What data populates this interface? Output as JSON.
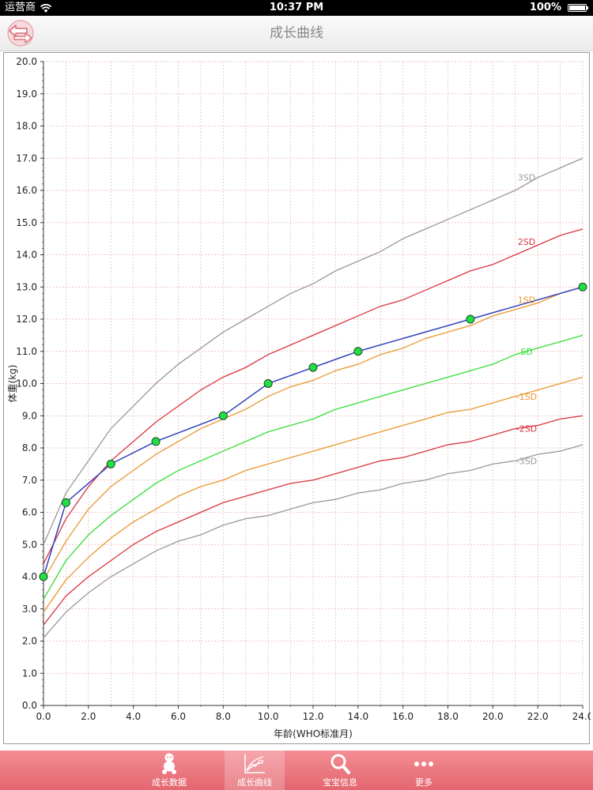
{
  "status_bar": {
    "carrier": "运营商",
    "time": "10:37 PM",
    "battery": "100%"
  },
  "nav": {
    "title": "成长曲线",
    "back_icon": "back-arrow-icon"
  },
  "tabs": [
    {
      "label": "成长数据",
      "icon": "baby-icon",
      "active": false
    },
    {
      "label": "成长曲线",
      "icon": "growth-chart-icon",
      "active": true
    },
    {
      "label": "宝宝信息",
      "icon": "search-icon",
      "active": false
    },
    {
      "label": "更多",
      "icon": "more-dots-icon",
      "active": false
    }
  ],
  "chart_data": {
    "type": "line",
    "xlabel": "年龄(WHO标准月)",
    "ylabel": "体重(kg)",
    "xlim": [
      0,
      24
    ],
    "ylim": [
      0,
      20
    ],
    "xticks": [
      "0.0",
      "2.0",
      "4.0",
      "6.0",
      "8.0",
      "10.0",
      "12.0",
      "14.0",
      "16.0",
      "18.0",
      "20.0",
      "22.0",
      "24.0"
    ],
    "yticks": [
      "0.0",
      "1.0",
      "2.0",
      "3.0",
      "4.0",
      "5.0",
      "6.0",
      "7.0",
      "8.0",
      "9.0",
      "10.0",
      "11.0",
      "12.0",
      "13.0",
      "14.0",
      "15.0",
      "16.0",
      "17.0",
      "18.0",
      "19.0",
      "20.0"
    ],
    "grid": true,
    "x": [
      0,
      1,
      2,
      3,
      4,
      5,
      6,
      7,
      8,
      9,
      10,
      11,
      12,
      13,
      14,
      15,
      16,
      17,
      18,
      19,
      20,
      21,
      22,
      23,
      24
    ],
    "series": [
      {
        "name": "3SD",
        "color": "#999999",
        "label_x": 21.5,
        "label_y": 16.4,
        "values": [
          5.0,
          6.6,
          7.6,
          8.6,
          9.3,
          10.0,
          10.6,
          11.1,
          11.6,
          12.0,
          12.4,
          12.8,
          13.1,
          13.5,
          13.8,
          14.1,
          14.5,
          14.8,
          15.1,
          15.4,
          15.7,
          16.0,
          16.4,
          16.7,
          17.0
        ]
      },
      {
        "name": "2SD",
        "color": "#d9343f",
        "label_x": 21.5,
        "label_y": 14.4,
        "values": [
          4.4,
          5.8,
          6.8,
          7.6,
          8.2,
          8.8,
          9.3,
          9.8,
          10.2,
          10.5,
          10.9,
          11.2,
          11.5,
          11.8,
          12.1,
          12.4,
          12.6,
          12.9,
          13.2,
          13.5,
          13.7,
          14.0,
          14.3,
          14.6,
          14.8
        ]
      },
      {
        "name": "1SD",
        "color": "#e8962e",
        "label_x": 21.5,
        "label_y": 12.6,
        "values": [
          3.9,
          5.1,
          6.1,
          6.8,
          7.3,
          7.8,
          8.2,
          8.6,
          8.9,
          9.2,
          9.6,
          9.9,
          10.1,
          10.4,
          10.6,
          10.9,
          11.1,
          11.4,
          11.6,
          11.8,
          12.1,
          12.3,
          12.5,
          12.8,
          13.0
        ]
      },
      {
        "name": "SD",
        "color": "#33dd33",
        "label_x": 21.5,
        "label_y": 11.0,
        "values": [
          3.3,
          4.5,
          5.3,
          5.9,
          6.4,
          6.9,
          7.3,
          7.6,
          7.9,
          8.2,
          8.5,
          8.7,
          8.9,
          9.2,
          9.4,
          9.6,
          9.8,
          10.0,
          10.2,
          10.4,
          10.6,
          10.9,
          11.1,
          11.3,
          11.5
        ]
      },
      {
        "name": "-1SD",
        "color": "#e8962e",
        "label_x": 21.5,
        "label_y": 9.6,
        "values": [
          2.9,
          3.9,
          4.6,
          5.2,
          5.7,
          6.1,
          6.5,
          6.8,
          7.0,
          7.3,
          7.5,
          7.7,
          7.9,
          8.1,
          8.3,
          8.5,
          8.7,
          8.9,
          9.1,
          9.2,
          9.4,
          9.6,
          9.8,
          10.0,
          10.2
        ]
      },
      {
        "name": "-2SD",
        "color": "#d9343f",
        "label_x": 21.5,
        "label_y": 8.6,
        "values": [
          2.5,
          3.4,
          4.0,
          4.5,
          5.0,
          5.4,
          5.7,
          6.0,
          6.3,
          6.5,
          6.7,
          6.9,
          7.0,
          7.2,
          7.4,
          7.6,
          7.7,
          7.9,
          8.1,
          8.2,
          8.4,
          8.6,
          8.7,
          8.9,
          9.0
        ]
      },
      {
        "name": "-3SD",
        "color": "#999999",
        "label_x": 21.5,
        "label_y": 7.6,
        "values": [
          2.1,
          2.9,
          3.5,
          4.0,
          4.4,
          4.8,
          5.1,
          5.3,
          5.6,
          5.8,
          5.9,
          6.1,
          6.3,
          6.4,
          6.6,
          6.7,
          6.9,
          7.0,
          7.2,
          7.3,
          7.5,
          7.6,
          7.8,
          7.9,
          8.1
        ]
      }
    ],
    "child": {
      "line_color": "#3344bb",
      "point_color": "#22dd44",
      "points": [
        [
          0,
          4.0
        ],
        [
          1,
          6.3
        ],
        [
          3,
          7.5
        ],
        [
          5,
          8.2
        ],
        [
          8,
          9.0
        ],
        [
          10,
          10.0
        ],
        [
          12,
          10.5
        ],
        [
          14,
          11.0
        ],
        [
          19,
          12.0
        ],
        [
          24,
          13.0
        ]
      ]
    }
  }
}
